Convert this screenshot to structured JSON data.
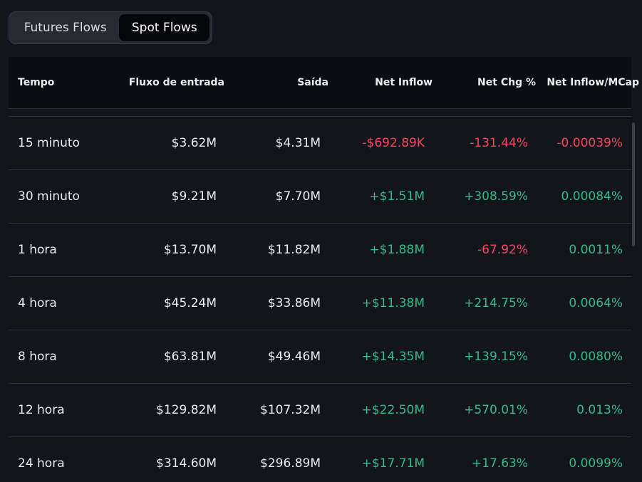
{
  "tabs": [
    {
      "label": "Futures Flows",
      "active": false
    },
    {
      "label": "Spot Flows",
      "active": true
    }
  ],
  "columns": [
    "Tempo",
    "Fluxo de entrada",
    "Saída",
    "Net Inflow",
    "Net Chg %",
    "Net Inflow/MCap"
  ],
  "rows": [
    {
      "tempo": "15 minuto",
      "inflow": "$3.62M",
      "outflow": "$4.31M",
      "net": "-$692.89K",
      "net_sign": "neg",
      "chg": "-131.44%",
      "chg_sign": "neg",
      "mcap": "-0.00039%",
      "mcap_sign": "neg"
    },
    {
      "tempo": "30 minuto",
      "inflow": "$9.21M",
      "outflow": "$7.70M",
      "net": "+$1.51M",
      "net_sign": "pos",
      "chg": "+308.59%",
      "chg_sign": "pos",
      "mcap": "0.00084%",
      "mcap_sign": "pos"
    },
    {
      "tempo": "1 hora",
      "inflow": "$13.70M",
      "outflow": "$11.82M",
      "net": "+$1.88M",
      "net_sign": "pos",
      "chg": "-67.92%",
      "chg_sign": "neg",
      "mcap": "0.0011%",
      "mcap_sign": "pos"
    },
    {
      "tempo": "4 hora",
      "inflow": "$45.24M",
      "outflow": "$33.86M",
      "net": "+$11.38M",
      "net_sign": "pos",
      "chg": "+214.75%",
      "chg_sign": "pos",
      "mcap": "0.0064%",
      "mcap_sign": "pos"
    },
    {
      "tempo": "8 hora",
      "inflow": "$63.81M",
      "outflow": "$49.46M",
      "net": "+$14.35M",
      "net_sign": "pos",
      "chg": "+139.15%",
      "chg_sign": "pos",
      "mcap": "0.0080%",
      "mcap_sign": "pos"
    },
    {
      "tempo": "12 hora",
      "inflow": "$129.82M",
      "outflow": "$107.32M",
      "net": "+$22.50M",
      "net_sign": "pos",
      "chg": "+570.01%",
      "chg_sign": "pos",
      "mcap": "0.013%",
      "mcap_sign": "pos"
    },
    {
      "tempo": "24 hora",
      "inflow": "$314.60M",
      "outflow": "$296.89M",
      "net": "+$17.71M",
      "net_sign": "pos",
      "chg": "+17.63%",
      "chg_sign": "pos",
      "mcap": "0.0099%",
      "mcap_sign": "pos"
    }
  ],
  "colors": {
    "positive": "#2ebd85",
    "negative": "#f6465d",
    "background": "#13151d",
    "header_background": "#0b0d12"
  }
}
